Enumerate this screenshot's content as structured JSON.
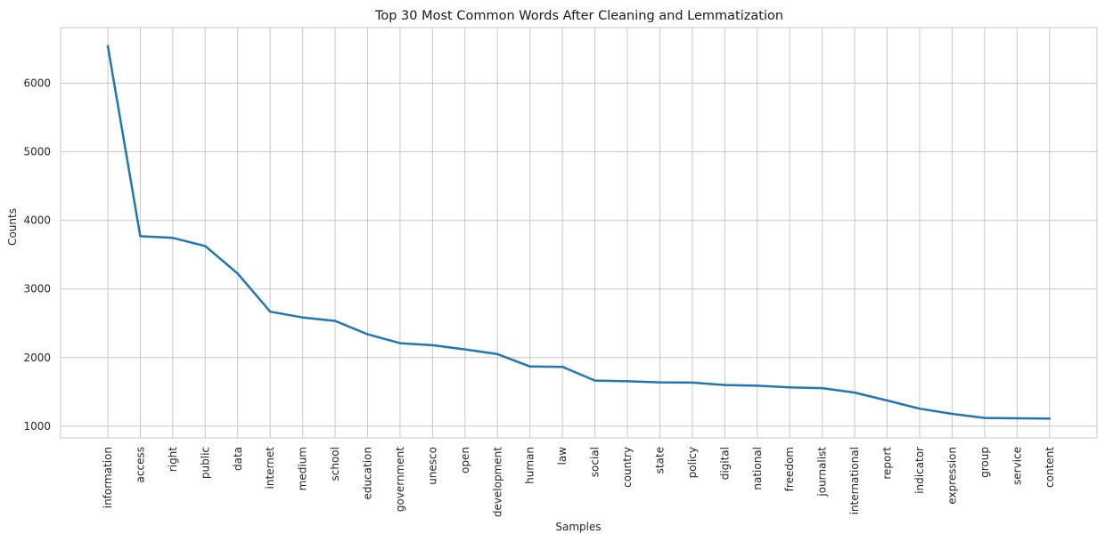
{
  "chart_data": {
    "type": "line",
    "title": "Top 30 Most Common Words After Cleaning and Lemmatization",
    "xlabel": "Samples",
    "ylabel": "Counts",
    "categories": [
      "information",
      "access",
      "right",
      "public",
      "data",
      "internet",
      "medium",
      "school",
      "education",
      "government",
      "unesco",
      "open",
      "development",
      "human",
      "law",
      "social",
      "country",
      "state",
      "policy",
      "digital",
      "national",
      "freedom",
      "journalist",
      "international",
      "report",
      "indicator",
      "expression",
      "group",
      "service",
      "content"
    ],
    "series": [
      {
        "values": [
          6540,
          3770,
          3745,
          3625,
          3225,
          2670,
          2585,
          2535,
          2340,
          2210,
          2180,
          2120,
          2050,
          1870,
          1865,
          1665,
          1655,
          1640,
          1635,
          1600,
          1590,
          1565,
          1555,
          1490,
          1375,
          1255,
          1180,
          1120,
          1115,
          1110
        ],
        "color": "#1f77b4"
      }
    ],
    "ylim": [
      830,
      6810
    ],
    "yticks": [
      1000,
      2000,
      3000,
      4000,
      5000,
      6000
    ],
    "ytick_labels": [
      "1000",
      "2000",
      "3000",
      "4000",
      "5000",
      "6000"
    ],
    "grid": true,
    "legend": "none"
  }
}
